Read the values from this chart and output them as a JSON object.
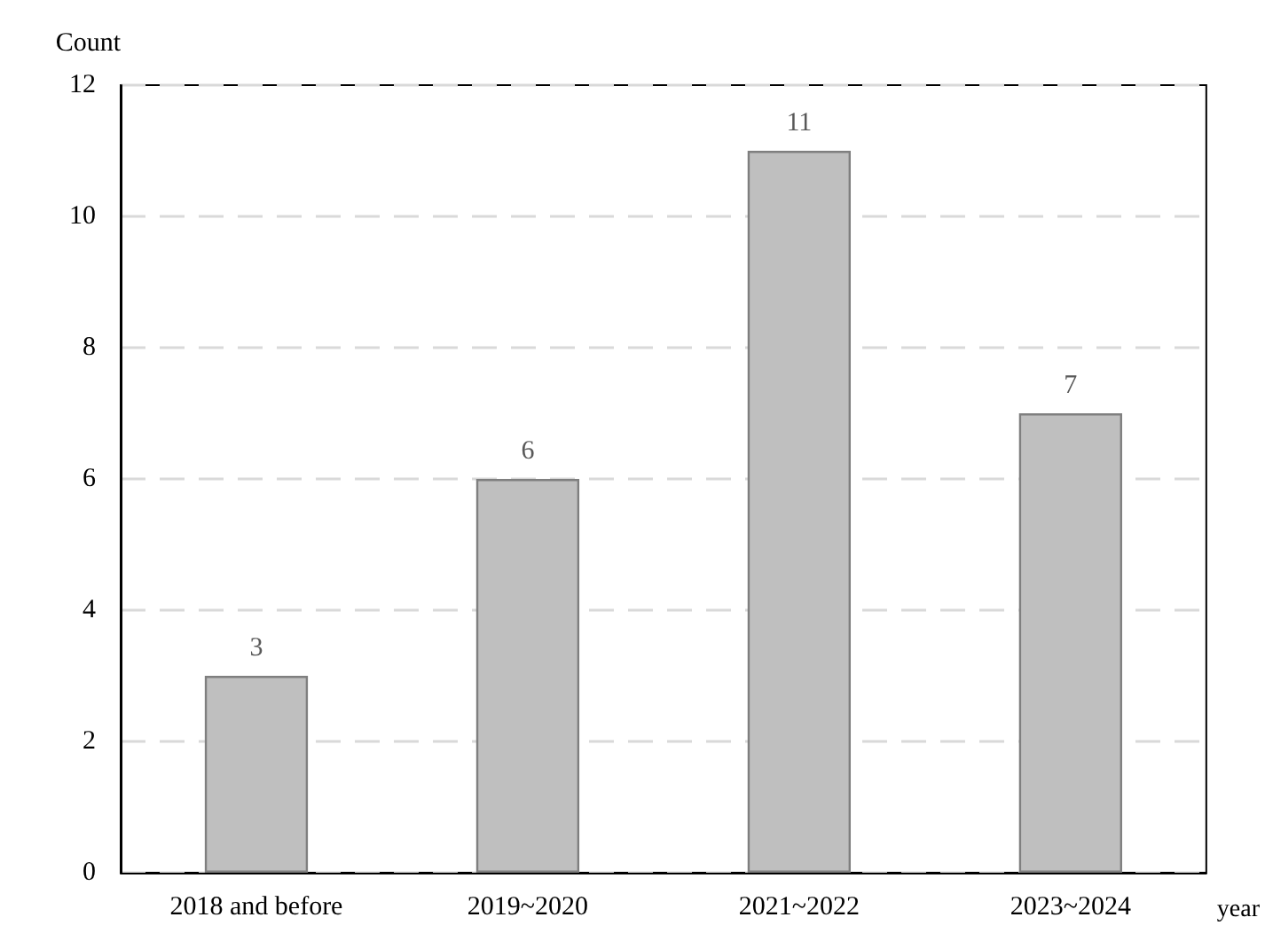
{
  "chart_data": {
    "type": "bar",
    "xlabel": "year",
    "ylabel": "Count",
    "categories": [
      "2018 and before",
      "2019~2020",
      "2021~2022",
      "2023~2024"
    ],
    "values": [
      3,
      6,
      11,
      7
    ],
    "color": "#bfbfbf",
    "ylim": [
      0,
      12
    ],
    "yticks": [
      0,
      2,
      4,
      6,
      8,
      10,
      12
    ],
    "grid": "y",
    "data_labels": true
  }
}
